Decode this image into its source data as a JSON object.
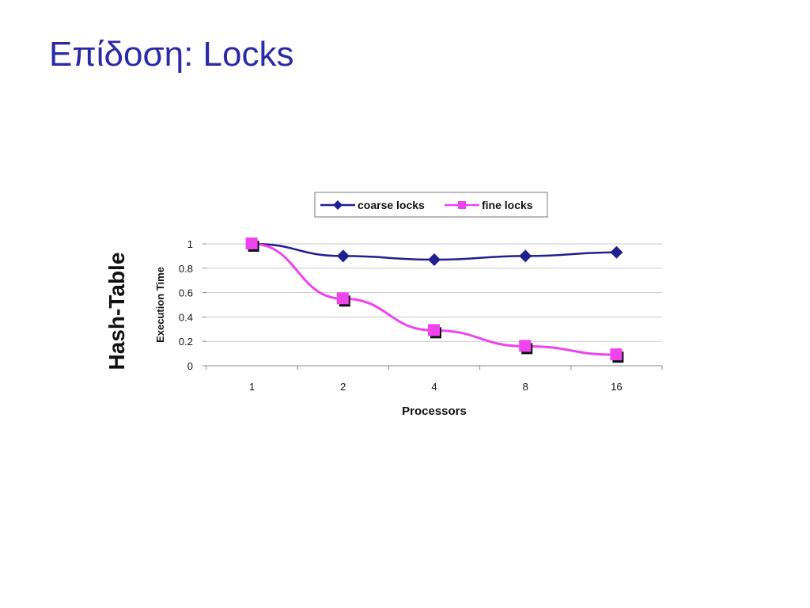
{
  "slide": {
    "title": "Επίδοση: Locks"
  },
  "chart_data": {
    "type": "line",
    "side_label": "Hash-Table",
    "xlabel": "Processors",
    "ylabel": "Execution Time",
    "categories": [
      "1",
      "2",
      "4",
      "8",
      "16"
    ],
    "ylim": [
      0,
      1
    ],
    "yticks": [
      "1",
      "0.8",
      "0.6",
      "0.4",
      "0.2",
      "0"
    ],
    "ytick_values": [
      1,
      0.8,
      0.6,
      0.4,
      0.2,
      0
    ],
    "grid": true,
    "legend_position": "top",
    "series": [
      {
        "name": "coarse locks",
        "color": "#1f1f8f",
        "marker": "diamond",
        "values": [
          1.0,
          0.9,
          0.87,
          0.9,
          0.93
        ]
      },
      {
        "name": "fine locks",
        "color": "#ee44ee",
        "marker": "square",
        "values": [
          1.0,
          0.55,
          0.29,
          0.16,
          0.09
        ]
      }
    ]
  }
}
